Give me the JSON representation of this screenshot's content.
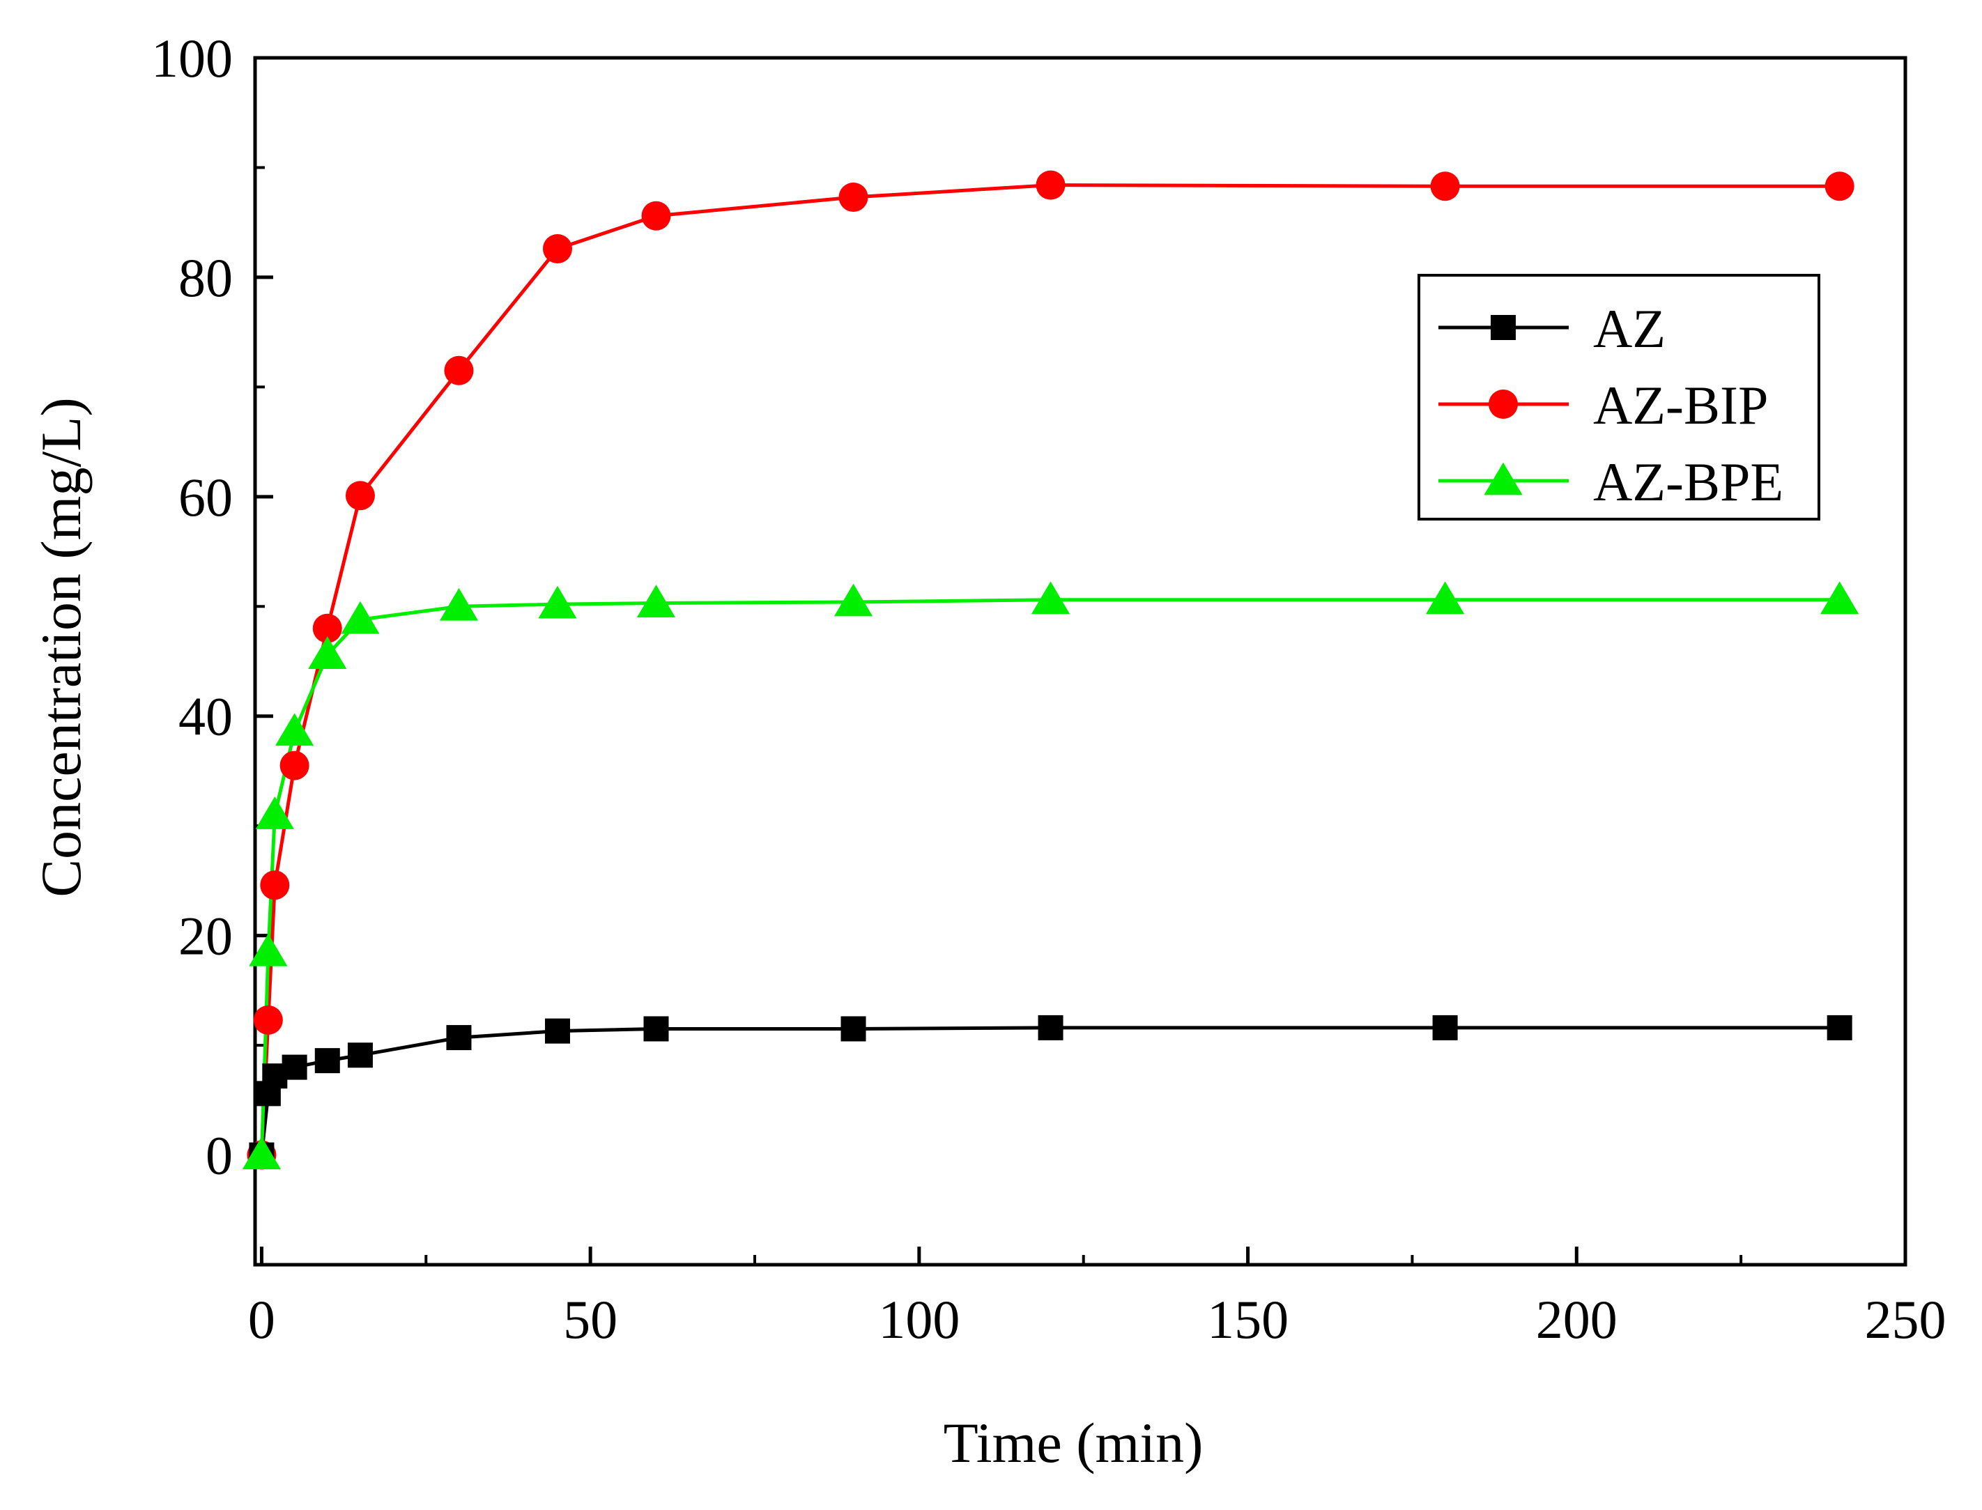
{
  "chart_data": {
    "type": "line",
    "title": "",
    "xlabel": "Time (min)",
    "ylabel": "Concentration (mg/L)",
    "xlim": [
      -1,
      250
    ],
    "ylim": [
      -10,
      100
    ],
    "xticks": [
      0,
      50,
      100,
      150,
      200,
      250
    ],
    "yticks": [
      0,
      20,
      40,
      60,
      80,
      100
    ],
    "x_tick_labels": [
      "0",
      "50",
      "100",
      "150",
      "200",
      "250"
    ],
    "y_tick_labels": [
      "0",
      "20",
      "40",
      "60",
      "80",
      "100"
    ],
    "x_minor_step": 25,
    "y_minor_step": 10,
    "grid": false,
    "legend_position": "top-right",
    "series": [
      {
        "name": "AZ",
        "color": "#000000",
        "marker": "square",
        "x": [
          0,
          1,
          2,
          5,
          10,
          15,
          30,
          45,
          60,
          90,
          120,
          180,
          240
        ],
        "values": [
          0,
          5.6,
          7.2,
          8.0,
          8.6,
          9.1,
          10.7,
          11.3,
          11.5,
          11.5,
          11.6,
          11.6,
          11.6
        ]
      },
      {
        "name": "AZ-BIP",
        "color": "#ff0000",
        "marker": "circle",
        "x": [
          0,
          1,
          2,
          5,
          10,
          15,
          30,
          45,
          60,
          90,
          120,
          180,
          240
        ],
        "values": [
          0,
          12.3,
          24.6,
          35.5,
          48.0,
          60.1,
          71.5,
          82.6,
          85.6,
          87.3,
          88.4,
          88.3,
          88.3
        ]
      },
      {
        "name": "AZ-BPE",
        "color": "#00ee00",
        "marker": "triangle",
        "x": [
          0,
          1,
          2,
          5,
          10,
          15,
          30,
          45,
          60,
          90,
          120,
          180,
          240
        ],
        "values": [
          0,
          18.5,
          31.0,
          38.6,
          45.6,
          48.8,
          50.0,
          50.2,
          50.3,
          50.4,
          50.6,
          50.6,
          50.6
        ]
      }
    ]
  }
}
